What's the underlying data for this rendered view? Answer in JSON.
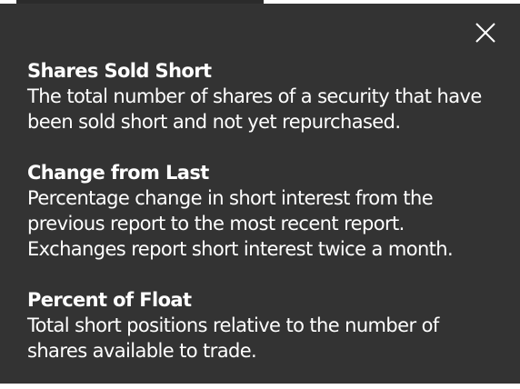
{
  "colors": {
    "panel_bg": "#333333",
    "text": "#ffffff",
    "top_strip_dark": "#2b2b2b"
  },
  "close_icon": "close-icon",
  "terms": [
    {
      "title": "Shares Sold Short",
      "description": "The total number of shares of a security that have been sold short and not yet repurchased."
    },
    {
      "title": "Change from Last",
      "description": "Percentage change in short interest from the previous report to the most recent report. Exchanges report short interest twice a month."
    },
    {
      "title": "Percent of Float",
      "description": "Total short positions relative to the number of shares available to trade."
    }
  ]
}
